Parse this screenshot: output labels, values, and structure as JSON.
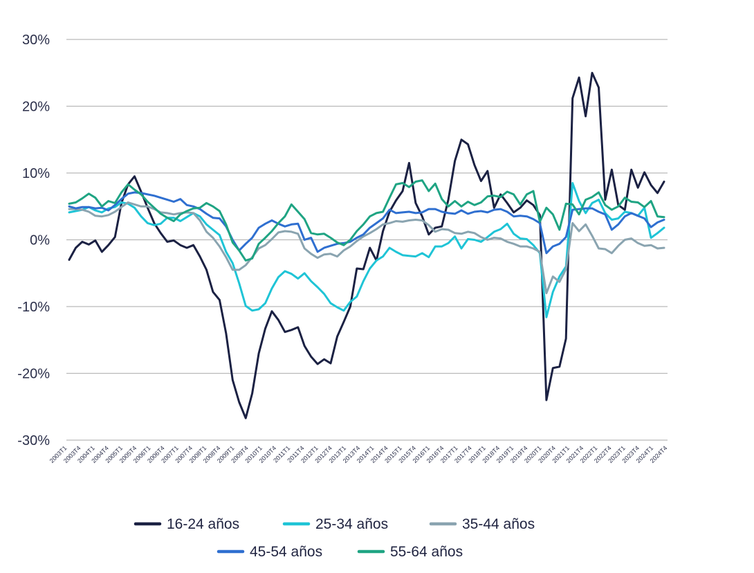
{
  "chart_data": {
    "type": "line",
    "ylim": [
      -30,
      30
    ],
    "y_ticks": [
      {
        "value": 30,
        "label": "30%"
      },
      {
        "value": 20,
        "label": "20%"
      },
      {
        "value": 10,
        "label": "10%"
      },
      {
        "value": 0,
        "label": "0%"
      },
      {
        "value": -10,
        "label": "-10%"
      },
      {
        "value": -20,
        "label": "-20%"
      },
      {
        "value": -30,
        "label": "-30%"
      }
    ],
    "x_tick_labels": [
      "2003T1",
      "2003T4",
      "2004T1",
      "2004T4",
      "2005T1",
      "2005T4",
      "2006T1",
      "2006T4",
      "2007T1",
      "2007T4",
      "2008T1",
      "2008T4",
      "2009T1",
      "2009T4",
      "2010T1",
      "2010T4",
      "2011T1",
      "2011T4",
      "2012T1",
      "2012T4",
      "2013T1",
      "2013T4",
      "2014T1",
      "2014T4",
      "2015T1",
      "2015T4",
      "2016T1",
      "2016T4",
      "2017T1",
      "2017T4",
      "2018T1",
      "2018T4",
      "2019T1",
      "2019T4",
      "2020T1",
      "2020T4",
      "2021T1",
      "2021T4",
      "2022T1",
      "2022T4",
      "2023T1",
      "2023T4",
      "2024T1",
      "2024T4"
    ],
    "grid": true,
    "legend_position": "bottom",
    "colors": {
      "s1": "#1b2143",
      "s2": "#1fc4d6",
      "s3": "#8aa4b0",
      "s4": "#2f6fd0",
      "s5": "#1fa483"
    },
    "series": [
      {
        "name": "16-24 años",
        "color": "#1b2143",
        "values": [
          -3,
          -1.2,
          -0.3,
          -0.7,
          -0.1,
          -1.8,
          -0.8,
          0.4,
          5.5,
          8.3,
          9.5,
          7.2,
          4.8,
          2.5,
          1.0,
          -0.3,
          -0.1,
          -0.8,
          -1.2,
          -0.8,
          -2.5,
          -4.5,
          -7.8,
          -9.0,
          -14.0,
          -21.0,
          -24.3,
          -26.7,
          -23.0,
          -17.0,
          -13.3,
          -10.7,
          -12.0,
          -13.8,
          -13.5,
          -13.1,
          -15.9,
          -17.5,
          -18.6,
          -17.9,
          -18.5,
          -14.5,
          -12.3,
          -10.0,
          -4.3,
          -4.4,
          -1.2,
          -3.1,
          1.3,
          4.2,
          5.9,
          7.3,
          11.5,
          5.5,
          3.5,
          0.8,
          1.8,
          2.0,
          6.0,
          11.8,
          15.0,
          14.3,
          11.2,
          8.8,
          10.3,
          4.8,
          6.8,
          5.5,
          4.1,
          4.8,
          5.9,
          5.2,
          3.7,
          -24.0,
          -19.2,
          -19.0,
          -14.8,
          21.2,
          24.3,
          18.5,
          25.0,
          22.8,
          6.0,
          10.5,
          5.2,
          4.5,
          10.5,
          7.8,
          10.1,
          8.2,
          7.0,
          8.7
        ]
      },
      {
        "name": "25-34 años",
        "color": "#1fc4d6",
        "values": [
          4.1,
          4.3,
          4.5,
          4.9,
          4.4,
          4.1,
          4.7,
          4.9,
          5.6,
          5.4,
          4.8,
          3.5,
          2.5,
          2.2,
          2.4,
          3.3,
          3.3,
          2.8,
          3.4,
          4.0,
          3.5,
          2.3,
          1.5,
          0.7,
          -1.8,
          -3.5,
          -6.5,
          -9.9,
          -10.6,
          -10.4,
          -9.5,
          -7.3,
          -5.6,
          -4.7,
          -5.1,
          -5.8,
          -5.0,
          -6.2,
          -7.1,
          -8.1,
          -9.5,
          -10.1,
          -10.6,
          -9.3,
          -8.5,
          -6.2,
          -4.3,
          -3.1,
          -2.5,
          -1.2,
          -1.8,
          -2.3,
          -2.4,
          -2.5,
          -2.0,
          -2.6,
          -1.0,
          -1.0,
          -0.5,
          0.5,
          -1.3,
          0.1,
          0.0,
          -0.3,
          0.4,
          1.2,
          1.6,
          2.4,
          0.9,
          0.2,
          0.1,
          -0.8,
          -2.0,
          -11.6,
          -7.8,
          -5.5,
          -4.0,
          8.5,
          5.8,
          4.0,
          5.5,
          6.0,
          4.0,
          3.0,
          3.2,
          4.2,
          4.0,
          3.6,
          4.8,
          0.3,
          1.0,
          1.8
        ]
      },
      {
        "name": "35-44 años",
        "color": "#8aa4b0",
        "values": [
          4.6,
          4.6,
          4.5,
          4.2,
          3.6,
          3.5,
          3.7,
          4.2,
          4.9,
          5.6,
          5.3,
          5.0,
          5.0,
          4.6,
          4.1,
          4.0,
          3.8,
          4.0,
          4.1,
          4.0,
          2.9,
          1.2,
          0.3,
          -1.0,
          -2.6,
          -4.5,
          -4.5,
          -3.8,
          -2.6,
          -1.3,
          -0.8,
          0.1,
          1.1,
          1.3,
          1.2,
          0.9,
          -1.3,
          -2.1,
          -2.7,
          -2.2,
          -2.1,
          -2.5,
          -1.6,
          -1.0,
          -0.2,
          0.5,
          1.0,
          1.6,
          2.3,
          2.5,
          2.8,
          2.7,
          2.9,
          3.0,
          2.9,
          2.2,
          1.2,
          1.6,
          1.5,
          1.0,
          0.9,
          1.2,
          1.0,
          0.4,
          0.0,
          0.3,
          0.2,
          -0.3,
          -0.6,
          -1.0,
          -1.0,
          -1.3,
          -1.8,
          -8.0,
          -5.5,
          -6.3,
          -4.4,
          2.5,
          1.3,
          2.3,
          0.6,
          -1.3,
          -1.4,
          -2.0,
          -0.9,
          0.0,
          0.2,
          -0.5,
          -0.9,
          -0.8,
          -1.3,
          -1.2
        ]
      },
      {
        "name": "45-54 años",
        "color": "#2f6fd0",
        "values": [
          5.0,
          4.7,
          4.9,
          4.9,
          4.7,
          4.8,
          4.4,
          5.2,
          6.1,
          6.9,
          7.1,
          7.0,
          6.8,
          6.6,
          6.3,
          6.0,
          5.7,
          6.1,
          5.2,
          5.0,
          4.6,
          3.9,
          3.3,
          3.2,
          2.0,
          0.0,
          -1.6,
          -0.6,
          0.3,
          1.8,
          2.4,
          2.9,
          2.4,
          2.0,
          2.3,
          2.4,
          0.0,
          0.3,
          -1.8,
          -1.2,
          -0.9,
          -0.6,
          -0.5,
          -0.3,
          0.3,
          0.8,
          1.8,
          2.5,
          3.2,
          4.5,
          4.0,
          4.1,
          4.2,
          4.0,
          4.1,
          4.6,
          4.6,
          4.2,
          4.0,
          3.9,
          4.4,
          3.9,
          4.2,
          4.3,
          4.1,
          4.5,
          4.6,
          4.2,
          3.5,
          3.6,
          3.5,
          3.1,
          2.5,
          -2.0,
          -1.0,
          -0.6,
          0.4,
          4.5,
          4.6,
          4.7,
          4.7,
          4.2,
          3.8,
          1.5,
          2.3,
          3.5,
          4.0,
          3.6,
          3.2,
          1.9,
          2.6,
          3.0
        ]
      },
      {
        "name": "55-64 años",
        "color": "#1fa483",
        "values": [
          5.4,
          5.6,
          6.2,
          6.9,
          6.3,
          5.0,
          5.8,
          5.5,
          7.1,
          8.3,
          7.5,
          6.8,
          5.7,
          4.8,
          3.9,
          3.3,
          2.8,
          3.8,
          4.3,
          4.7,
          4.8,
          5.5,
          5.0,
          4.3,
          2.3,
          -0.4,
          -1.6,
          -3.1,
          -2.8,
          -0.6,
          0.3,
          1.3,
          2.5,
          3.5,
          5.3,
          4.2,
          3.1,
          1.0,
          0.8,
          0.9,
          0.3,
          -0.4,
          -0.8,
          0.0,
          1.3,
          2.3,
          3.5,
          4.0,
          4.2,
          6.3,
          8.3,
          8.5,
          7.9,
          8.7,
          8.9,
          7.3,
          8.4,
          6.1,
          5.0,
          5.8,
          5.0,
          5.7,
          5.2,
          5.6,
          6.5,
          6.6,
          6.4,
          7.2,
          6.8,
          5.3,
          6.8,
          7.3,
          2.7,
          4.8,
          3.8,
          1.5,
          5.4,
          5.3,
          3.8,
          6.0,
          6.4,
          7.1,
          5.2,
          4.5,
          5.0,
          6.3,
          5.7,
          5.6,
          4.9,
          5.8,
          3.5,
          3.4
        ]
      }
    ]
  }
}
